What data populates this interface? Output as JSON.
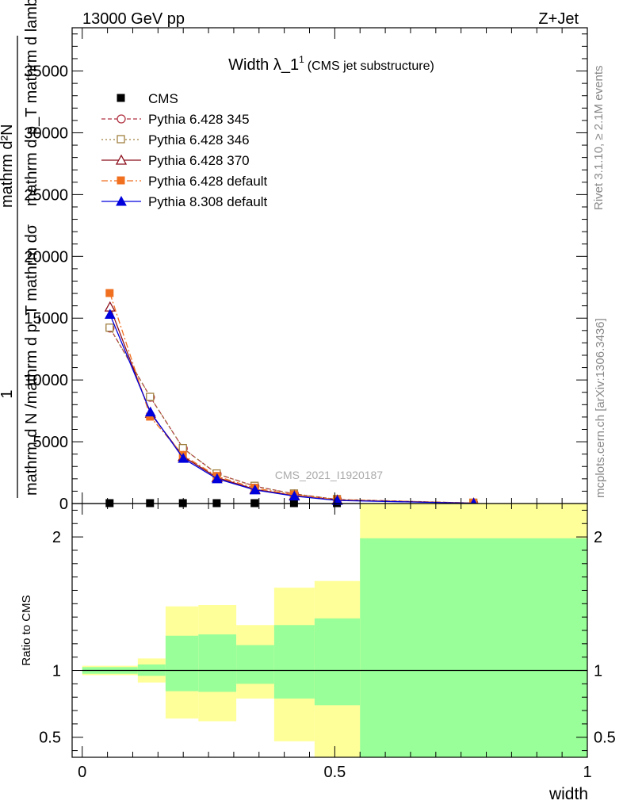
{
  "header": {
    "left": "13000 GeV pp",
    "right": "Z+Jet"
  },
  "side_labels": {
    "rivet": "Rivet 3.1.10, ≥ 2.1M events",
    "mcplots": "mcplots.cern.ch [arXiv:1306.3436]"
  },
  "watermark": "CMS_2021_I1920187",
  "main_title": {
    "text": "Width λ_1",
    "sup": "1",
    "small": "(CMS jet substructure)"
  },
  "ylabel_main": {
    "one": "1",
    "denominator": "mathrm d N /mathrm d p_T mathrm dσ",
    "numerator": "mathrm d²N",
    "numerator_denominator": "mathrm d p_T mathrm d lambda"
  },
  "ylabel_ratio": "Ratio to CMS",
  "xlabel": "width",
  "chart_data": [
    {
      "type": "line",
      "title": "Width λ_1^1 (CMS jet substructure)",
      "ylim": [
        0,
        38500
      ],
      "xlim": [
        -0.02,
        1.0
      ],
      "y_ticks": [
        {
          "v": 0,
          "label": "0"
        },
        {
          "v": 5000,
          "label": "5000"
        },
        {
          "v": 10000,
          "label": "10000"
        },
        {
          "v": 15000,
          "label": "15000"
        },
        {
          "v": 20000,
          "label": "20000"
        },
        {
          "v": 25000,
          "label": "25000"
        },
        {
          "v": 30000,
          "label": "30000"
        },
        {
          "v": 35000,
          "label": "35000"
        }
      ],
      "legend_position": "top-left",
      "x": [
        0.055,
        0.135,
        0.2,
        0.267,
        0.342,
        0.42,
        0.505,
        0.775
      ],
      "series": [
        {
          "name": "CMS",
          "marker": "square-filled",
          "color": "#000000",
          "dash": "",
          "values": [
            0,
            0,
            0,
            0,
            0,
            0,
            0,
            0
          ]
        },
        {
          "name": "Pythia 6.428 345",
          "marker": "circle-open",
          "color": "#b03040",
          "dash": "5,3",
          "values": [
            14200,
            8600,
            4450,
            2400,
            1400,
            780,
            330,
            40
          ]
        },
        {
          "name": "Pythia 6.428 346",
          "marker": "square-open",
          "color": "#a08040",
          "dash": "2,3",
          "values": [
            14200,
            8600,
            4450,
            2400,
            1400,
            780,
            330,
            40
          ]
        },
        {
          "name": "Pythia 6.428 370",
          "marker": "triangle-open",
          "color": "#8b0e1a",
          "dash": "",
          "values": [
            15900,
            7300,
            3800,
            2100,
            1150,
            640,
            280,
            30
          ]
        },
        {
          "name": "Pythia 6.428 default",
          "marker": "square-filled",
          "color": "#f07020",
          "dash": "8,3,2,3",
          "values": [
            17000,
            7000,
            3900,
            2200,
            1250,
            700,
            300,
            35
          ]
        },
        {
          "name": "Pythia 8.308 default",
          "marker": "triangle-filled",
          "color": "#0000dd",
          "dash": "",
          "values": [
            15300,
            7400,
            3650,
            2000,
            1100,
            600,
            250,
            25
          ]
        }
      ]
    },
    {
      "type": "area",
      "title": "Ratio to CMS",
      "ylim": [
        0.35,
        2.25
      ],
      "xlim": [
        -0.02,
        1.0
      ],
      "y_ticks": [
        {
          "v": 0.5,
          "label": "0.5"
        },
        {
          "v": 1,
          "label": "1"
        },
        {
          "v": 2,
          "label": "2"
        }
      ],
      "x_ticks": [
        {
          "v": 0,
          "label": "0"
        },
        {
          "v": 0.5,
          "label": "0.5"
        },
        {
          "v": 1,
          "label": "1"
        }
      ],
      "reference": 1,
      "bands": [
        {
          "x0": 0.0,
          "x1": 0.11,
          "yellow": [
            0.965,
            1.035
          ],
          "green": [
            0.975,
            1.025
          ]
        },
        {
          "x0": 0.11,
          "x1": 0.165,
          "yellow": [
            0.91,
            1.09
          ],
          "green": [
            0.96,
            1.045
          ]
        },
        {
          "x0": 0.165,
          "x1": 0.23,
          "yellow": [
            0.64,
            1.48
          ],
          "green": [
            0.845,
            1.26
          ]
        },
        {
          "x0": 0.23,
          "x1": 0.305,
          "yellow": [
            0.62,
            1.49
          ],
          "green": [
            0.84,
            1.27
          ]
        },
        {
          "x0": 0.305,
          "x1": 0.38,
          "yellow": [
            0.79,
            1.34
          ],
          "green": [
            0.9,
            1.19
          ]
        },
        {
          "x0": 0.38,
          "x1": 0.46,
          "yellow": [
            0.47,
            1.62
          ],
          "green": [
            0.79,
            1.34
          ]
        },
        {
          "x0": 0.46,
          "x1": 0.55,
          "yellow": [
            0.35,
            1.67
          ],
          "green": [
            0.74,
            1.39
          ]
        },
        {
          "x0": 0.55,
          "x1": 1.0,
          "yellow": [
            0.35,
            2.25
          ],
          "green": [
            0.35,
            1.99
          ]
        }
      ]
    }
  ],
  "colors": {
    "yellow_band": "#ffff99",
    "green_band": "#99ff99",
    "reference_line": "#000000"
  }
}
